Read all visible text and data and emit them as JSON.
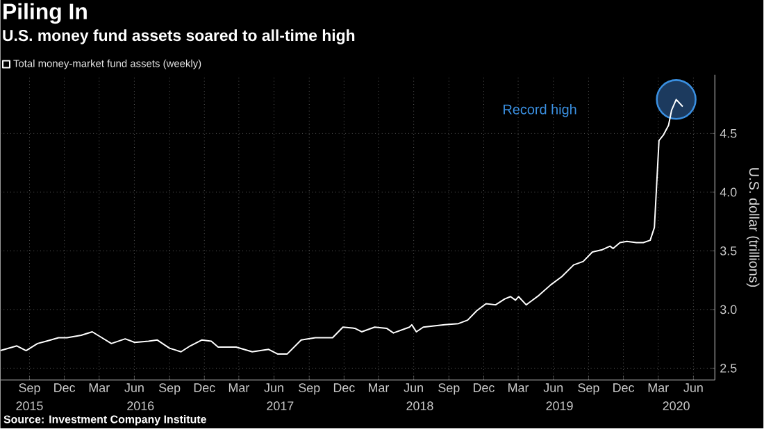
{
  "chart_data": {
    "type": "line",
    "title": "Piling In",
    "subtitle": "U.S. money fund assets soared to all-time high",
    "ylabel": "U.S. dollar (trillions)",
    "x": [
      "2015-07-01",
      "2015-08-13",
      "2015-09-06",
      "2015-10-06",
      "2015-10-29",
      "2015-11-30",
      "2015-12-22",
      "2016-01-28",
      "2016-02-26",
      "2016-03-17",
      "2016-04-16",
      "2016-05-22",
      "2016-06-16",
      "2016-07-22",
      "2016-08-14",
      "2016-09-15",
      "2016-10-15",
      "2016-11-08",
      "2016-12-08",
      "2017-01-02",
      "2017-01-20",
      "2017-03-08",
      "2017-04-19",
      "2017-06-01",
      "2017-06-25",
      "2017-07-19",
      "2017-08-25",
      "2017-10-01",
      "2017-11-15",
      "2017-12-12",
      "2018-01-12",
      "2018-01-30",
      "2018-03-05",
      "2018-04-05",
      "2018-04-23",
      "2018-06-04",
      "2018-06-10",
      "2018-06-22",
      "2018-07-10",
      "2018-09-04",
      "2018-10-10",
      "2018-11-03",
      "2018-11-27",
      "2018-12-21",
      "2019-01-15",
      "2019-02-08",
      "2019-02-23",
      "2019-03-08",
      "2019-03-16",
      "2019-04-05",
      "2019-05-08",
      "2019-06-08",
      "2019-07-07",
      "2019-08-07",
      "2019-09-01",
      "2019-09-25",
      "2019-10-21",
      "2019-11-10",
      "2019-11-18",
      "2019-12-06",
      "2019-12-24",
      "2020-01-18",
      "2020-02-05",
      "2020-02-23",
      "2020-03-05",
      "2020-03-17",
      "2020-03-29",
      "2020-04-11",
      "2020-04-19",
      "2020-05-01",
      "2020-05-18"
    ],
    "series": [
      {
        "name": "Total money-market fund assets (weekly)",
        "color": "#ffffff",
        "values": [
          2.65,
          2.69,
          2.65,
          2.71,
          2.73,
          2.76,
          2.76,
          2.78,
          2.81,
          2.77,
          2.71,
          2.75,
          2.72,
          2.73,
          2.74,
          2.67,
          2.64,
          2.69,
          2.74,
          2.73,
          2.68,
          2.68,
          2.64,
          2.66,
          2.62,
          2.62,
          2.74,
          2.76,
          2.76,
          2.85,
          2.84,
          2.81,
          2.85,
          2.84,
          2.8,
          2.85,
          2.87,
          2.81,
          2.85,
          2.87,
          2.88,
          2.91,
          2.99,
          3.05,
          3.04,
          3.09,
          3.11,
          3.08,
          3.11,
          3.04,
          3.12,
          3.21,
          3.28,
          3.38,
          3.41,
          3.49,
          3.51,
          3.54,
          3.52,
          3.57,
          3.58,
          3.57,
          3.57,
          3.59,
          3.7,
          4.44,
          4.49,
          4.57,
          4.7,
          4.79,
          4.73
        ]
      }
    ],
    "xlim": [
      "2015-07-01",
      "2020-08-10"
    ],
    "xticks": [
      {
        "value": "2015-09-15",
        "label": "Sep"
      },
      {
        "value": "2015-12-15",
        "label": "Dec"
      },
      {
        "value": "2016-03-15",
        "label": "Mar"
      },
      {
        "value": "2016-06-15",
        "label": "Jun"
      },
      {
        "value": "2016-09-15",
        "label": "Sep"
      },
      {
        "value": "2016-12-15",
        "label": "Dec"
      },
      {
        "value": "2017-03-15",
        "label": "Mar"
      },
      {
        "value": "2017-06-15",
        "label": "Jun"
      },
      {
        "value": "2017-09-15",
        "label": "Sep"
      },
      {
        "value": "2017-12-15",
        "label": "Dec"
      },
      {
        "value": "2018-03-15",
        "label": "Mar"
      },
      {
        "value": "2018-06-15",
        "label": "Jun"
      },
      {
        "value": "2018-09-15",
        "label": "Sep"
      },
      {
        "value": "2018-12-15",
        "label": "Dec"
      },
      {
        "value": "2019-03-15",
        "label": "Mar"
      },
      {
        "value": "2019-06-15",
        "label": "Jun"
      },
      {
        "value": "2019-09-15",
        "label": "Sep"
      },
      {
        "value": "2019-12-15",
        "label": "Dec"
      },
      {
        "value": "2020-03-15",
        "label": "Mar"
      },
      {
        "value": "2020-06-15",
        "label": "Jun"
      }
    ],
    "x2lim": [
      "2015-07-01",
      "2020-08-10"
    ],
    "x2ticks": [
      {
        "value": "2015-09-15",
        "label": "2015"
      },
      {
        "value": "2016-07-01",
        "label": "2016"
      },
      {
        "value": "2017-07-01",
        "label": "2017"
      },
      {
        "value": "2018-07-01",
        "label": "2018"
      },
      {
        "value": "2019-07-01",
        "label": "2019"
      },
      {
        "value": "2020-05-01",
        "label": "2020"
      }
    ],
    "ylim": [
      2.4,
      5.0
    ],
    "yticks": [
      {
        "value": 2.5,
        "label": "2.5"
      },
      {
        "value": 3.0,
        "label": "3.0"
      },
      {
        "value": 3.5,
        "label": "3.5"
      },
      {
        "value": 4.0,
        "label": "4.0"
      },
      {
        "value": 4.5,
        "label": "4.5"
      }
    ],
    "grid": true,
    "legend": "top left",
    "annotations": [
      "Record high",
      "Source: Investment Company Institute"
    ]
  }
}
